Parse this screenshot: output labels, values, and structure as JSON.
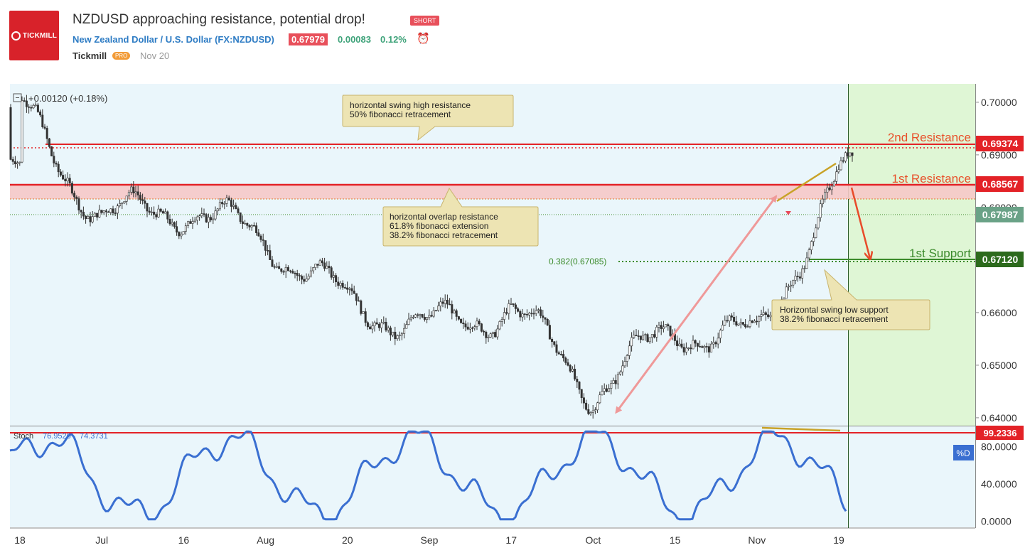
{
  "header": {
    "logo_text": "TICKMILL",
    "title": "NZDUSD approaching resistance, potential drop!",
    "badge": "SHORT",
    "symbol": "New Zealand Dollar / U.S. Dollar (FX:NZDUSD)",
    "price": "0.67979",
    "change": "0.00083",
    "change_pct": "0.12%",
    "author": "Tickmill",
    "author_badge": "PRO",
    "date": "Nov 20"
  },
  "colors": {
    "bg": "#eaf6fb",
    "candle": "#333333",
    "resistance": "#e32227",
    "support": "#3c8b2c",
    "zone_fill": "#f6c9c8",
    "forecast_fill": "#dff6d5",
    "stoch": "#3a6fd1",
    "annotation_bg": "#ede4b3",
    "up_arrow": "#ef9999",
    "down_arrow": "#e84b2a",
    "trendline": "#c8a227"
  },
  "chart_data": {
    "type": "candlestick",
    "pair": "NZDUSD",
    "change_label": "+0.00120 (+0.18%)",
    "y_ticks": [
      "0.70000",
      "0.69000",
      "0.68000",
      "0.67000",
      "0.66000",
      "0.65000",
      "0.64000"
    ],
    "ylim": [
      0.6385,
      0.7035
    ],
    "x_ticks": [
      "18",
      "Jul",
      "16",
      "Aug",
      "20",
      "Sep",
      "17",
      "Oct",
      "15",
      "Nov",
      "19"
    ],
    "close_path": [
      {
        "label": "18",
        "value": 0.699
      },
      {
        "label": "Jul",
        "value": 0.678
      },
      {
        "label": "16",
        "value": 0.68
      },
      {
        "label": "Aug",
        "value": 0.674
      },
      {
        "label": "20",
        "value": 0.662
      },
      {
        "label": "Sep",
        "value": 0.657
      },
      {
        "label": "17",
        "value": 0.661
      },
      {
        "label": "Oct",
        "value": 0.645
      },
      {
        "label": "15",
        "value": 0.657
      },
      {
        "label": "Nov",
        "value": 0.655
      },
      {
        "label": "19",
        "value": 0.686
      }
    ],
    "levels": [
      {
        "name": "2nd Resistance",
        "value": 0.69374,
        "label": "0.69374"
      },
      {
        "name": "1st Resistance",
        "value": 0.68567,
        "label": "0.68567"
      },
      {
        "name": "current",
        "value": 0.67987,
        "label": "0.67987"
      },
      {
        "name": "1st Support",
        "value": 0.6712,
        "label": "0.67120"
      }
    ],
    "fib_label": "0.382(0.67085)",
    "annotations": [
      {
        "line1": "horizontal swing high resistance",
        "line2": "50% fibonacci retracement",
        "line3": ""
      },
      {
        "line1": "horizontal overlap resistance",
        "line2": "61.8% fibonacci extension",
        "line3": "38.2% fibonacci retracement"
      },
      {
        "line1": "Horizontal swing low support",
        "line2": "38.2% fibonacci retracement",
        "line3": ""
      }
    ],
    "stoch": {
      "label": "Stoch",
      "k": "76.9520",
      "d": "74.3731",
      "level_label": "99.2336",
      "d_badge": "%D",
      "y_ticks": [
        "80.0000",
        "40.0000",
        "0.0000"
      ],
      "ylim": [
        -5,
        100
      ]
    }
  }
}
